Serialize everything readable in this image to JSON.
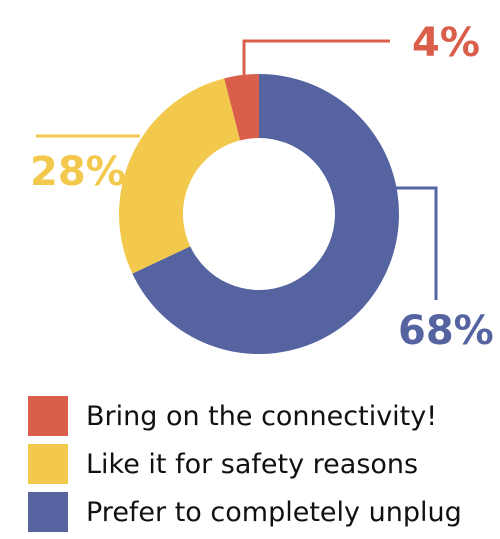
{
  "chart_data": {
    "type": "pie",
    "title": "",
    "categories": [
      "Bring on the connectivity!",
      "Like it for safety reasons",
      "Prefer to completely unplug"
    ],
    "values": [
      4,
      28,
      68
    ],
    "value_labels": [
      "4%",
      "28%",
      "68%"
    ],
    "colors": [
      "#d95f4b",
      "#f2c94c",
      "#5563a0"
    ],
    "donut": true,
    "legend_position": "bottom-left"
  }
}
